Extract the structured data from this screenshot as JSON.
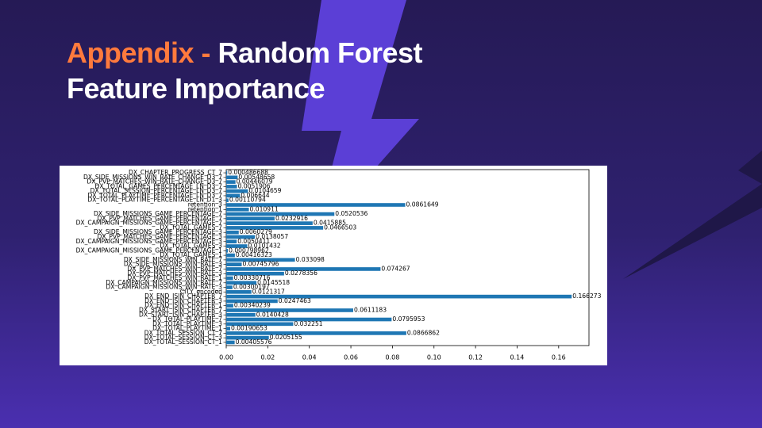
{
  "slide": {
    "title_accent": "Appendix -",
    "title_rest": "Random Forest",
    "title_line2": "Feature Importance"
  },
  "chart_data": {
    "type": "bar",
    "orientation": "horizontal",
    "color": "#1f77b4",
    "categories": [
      "DX_CHAPTER_PROGRESS_CT_7",
      "DX_SIDE_MISSIONS_WIN_RATE_CHANGE_D3_7",
      "DX_PVP_MATCHES_WIN_RATE_CHANGE_D3_7",
      "DX_TOTAL_GAMES_PERCENTAGE_LN_D3_7",
      "DX_TOTAL_SESSION_PERCENTAGE_LN_D3_7",
      "DX_TOTAL_PLAYTIME_PERCENTAGE_LN_D3_7",
      "DX_TOTAL_PLAYTIME_PERCENTAGE_LN_D1_3",
      "retention_3",
      "retention_1",
      "DX_SIDE_MISSIONS_GAME_PERCENTAGE_7",
      "DX_PVP_MATCHES_GAME_PERCENTAGE_7",
      "DX_CAMPAIGN_MISSIONS_GAME_PERCENTAGE_7",
      "DX_TOTAL_GAMES_7",
      "DX_SIDE_MISSIONS_GAME_PERCENTAGE_3",
      "DX_PVP_MATCHES_GAME_PERCENTAGE_3",
      "DX_CAMPAIGN_MISSIONS_GAME_PERCENTAGE_3",
      "DX_TOTAL_GAMES_3",
      "DX_CAMPAIGN_MISSIONS_GAME_PERCENTAGE_1",
      "DX_TOTAL_GAMES_1",
      "DX_SIDE_MISSIONS_WIN_RATE_7",
      "DX_SIDE_MISSIONS_WIN_RATE_3",
      "DX_PVP_MATCHES_WIN_RATE_7",
      "DX_PVP_MATCHES_WIN_RATE_3",
      "DX_PVP_MATCHES_WIN_RATE_1",
      "DX_CAMPAIGN_MISSIONS_WIN_RATE_7",
      "DX_CAMPAIGN_MISSIONS_WIN_RATE_3",
      "CITY_encoded",
      "DX_END_ISIN_CHAPTER_7",
      "DX_END_ISIN_CHAPTER_3",
      "DX_END_ISIN_CHAPTER_1",
      "DX_START_ISIN_CHAPTER_7",
      "DX_START_ISIN_CHAPTER_3",
      "DX_TOTAL_PLAYTIME_7",
      "DX_TOTAL_PLAYTIME_3",
      "DX_TOTAL_PLAYTIME_1",
      "DX_TOTAL_SESSION_CT_7",
      "DX_TOTAL_SESSION_CT_3",
      "DX_TOTAL_SESSION_CT_1"
    ],
    "values": [
      0.000486688,
      0.00548658,
      0.00446079,
      0.0051906,
      0.0104659,
      0.006644,
      0.00110794,
      0.0861649,
      0.010911,
      0.0520536,
      0.0232916,
      0.0415885,
      0.0466503,
      0.0060279,
      0.0138057,
      0.0050411,
      0.0101432,
      0.000798962,
      0.00416323,
      0.033098,
      0.00745796,
      0.074267,
      0.0278356,
      0.00330716,
      0.0145518,
      0.00300197,
      0.0121317,
      0.166273,
      0.0247463,
      0.00340239,
      0.0611183,
      0.0140428,
      0.0795953,
      0.032251,
      0.00190653,
      0.0866862,
      0.0205155,
      0.00405576
    ],
    "xlim": [
      0,
      0.17459
    ],
    "xticks": [
      {
        "value": 0,
        "label": "0.00"
      },
      {
        "value": 0.02,
        "label": "0.02"
      },
      {
        "value": 0.04,
        "label": "0.04"
      },
      {
        "value": 0.06,
        "label": "0.06"
      },
      {
        "value": 0.08,
        "label": "0.08"
      },
      {
        "value": 0.1,
        "label": "0.10"
      },
      {
        "value": 0.12,
        "label": "0.12"
      },
      {
        "value": 0.14,
        "label": "0.14"
      },
      {
        "value": 0.16,
        "label": "0.16"
      }
    ],
    "grid": false
  }
}
